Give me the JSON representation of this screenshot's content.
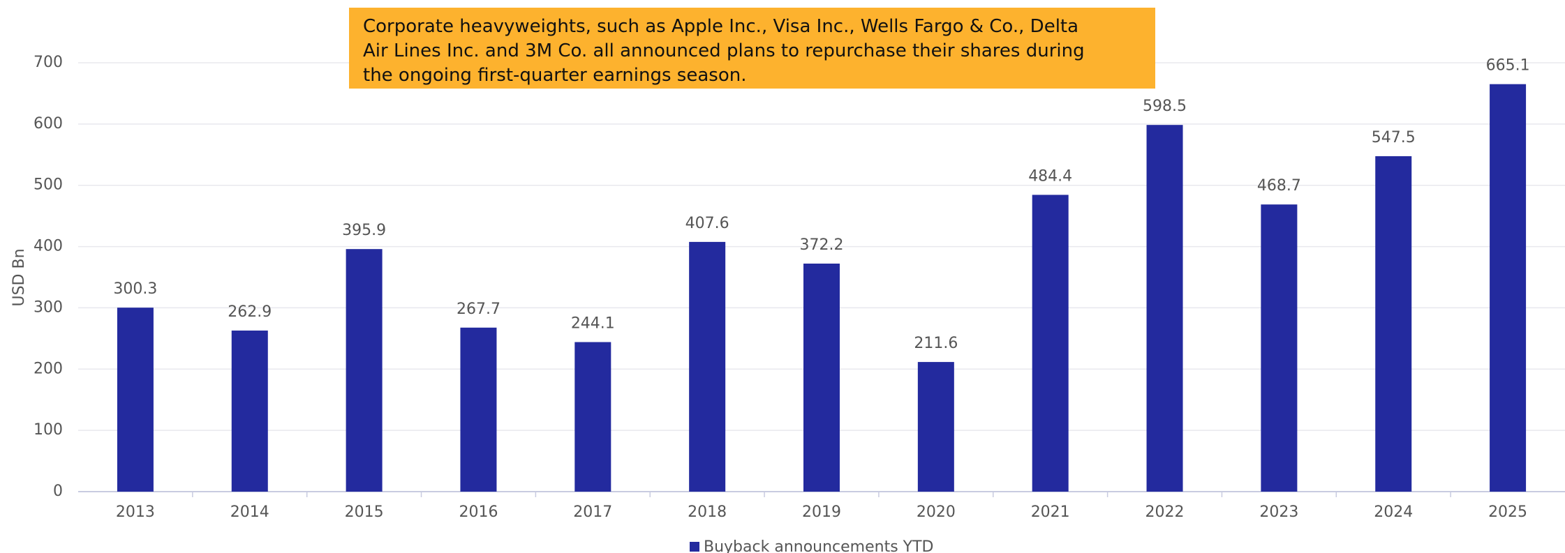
{
  "chart_data": {
    "type": "bar",
    "annotation": "Corporate heavyweights, such as Apple Inc., Visa Inc., Wells Fargo & Co., Delta Air Lines Inc. and 3M Co. all announced plans to repurchase their shares during the ongoing first-quarter earnings season.",
    "y_label": "USD Bn",
    "categories": [
      "2013",
      "2014",
      "2015",
      "2016",
      "2017",
      "2018",
      "2019",
      "2020",
      "2021",
      "2022",
      "2023",
      "2024",
      "2025"
    ],
    "series": [
      {
        "name": "Buyback announcements YTD",
        "color": "#232a9e",
        "values": [
          300.3,
          262.9,
          395.9,
          267.7,
          244.1,
          407.6,
          372.2,
          211.6,
          484.4,
          598.5,
          468.7,
          547.5,
          665.1
        ]
      }
    ],
    "ylim": [
      0,
      700
    ],
    "yticks": [
      0,
      100,
      200,
      300,
      400,
      500,
      600,
      700
    ],
    "grid": true,
    "legend": "bottom"
  }
}
